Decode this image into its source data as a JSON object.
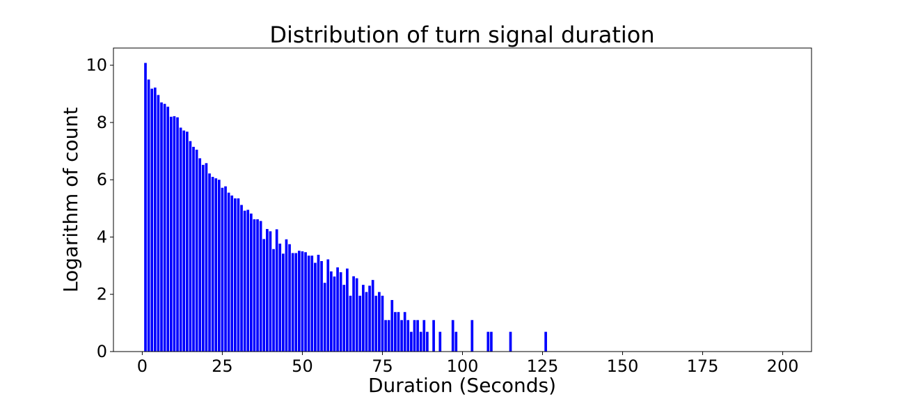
{
  "chart_data": {
    "type": "bar",
    "title": "Distribution of turn signal duration",
    "xlabel": "Duration (Seconds)",
    "ylabel": "Logarithm of count",
    "xlim": [
      -9,
      209
    ],
    "ylim": [
      0,
      10.6
    ],
    "xticks": [
      0,
      25,
      50,
      75,
      100,
      125,
      150,
      175,
      200
    ],
    "yticks": [
      0,
      2,
      4,
      6,
      8,
      10
    ],
    "grid": false,
    "bar_color": "#0000ff",
    "series": [
      {
        "x": [
          1,
          2,
          3,
          4,
          5,
          6,
          7,
          8,
          9,
          10,
          11,
          12,
          13,
          14,
          15,
          16,
          17,
          18,
          19,
          20,
          21,
          22,
          23,
          24,
          25,
          26,
          27,
          28,
          29,
          30,
          31,
          32,
          33,
          34,
          35,
          36,
          37,
          38,
          39,
          40,
          41,
          42,
          43,
          44,
          45,
          46,
          47,
          48,
          49,
          50,
          51,
          52,
          53,
          54,
          55,
          56,
          57,
          58,
          59,
          60,
          61,
          62,
          63,
          64,
          65,
          66,
          67,
          68,
          69,
          70,
          71,
          72,
          73,
          74,
          75,
          76,
          77,
          78,
          79,
          80,
          81,
          82,
          83,
          84,
          85,
          86,
          87,
          88,
          89,
          91,
          93,
          97,
          98,
          103,
          108,
          109,
          115,
          126
        ],
        "values": [
          10.08,
          9.5,
          9.18,
          9.22,
          8.96,
          8.7,
          8.65,
          8.55,
          8.2,
          8.22,
          8.18,
          7.82,
          7.72,
          7.68,
          7.35,
          7.15,
          7.05,
          6.75,
          6.52,
          6.58,
          6.22,
          6.1,
          6.05,
          6.0,
          5.72,
          5.77,
          5.55,
          5.45,
          5.35,
          5.35,
          5.12,
          4.92,
          4.95,
          4.82,
          4.62,
          4.62,
          4.56,
          3.93,
          4.28,
          4.2,
          3.58,
          4.27,
          3.77,
          3.42,
          3.92,
          3.75,
          3.44,
          3.44,
          3.52,
          3.5,
          3.47,
          3.35,
          3.35,
          3.1,
          3.38,
          3.16,
          2.4,
          3.22,
          2.8,
          2.62,
          2.94,
          2.77,
          2.33,
          2.9,
          1.95,
          2.63,
          2.56,
          1.95,
          2.33,
          2.08,
          2.3,
          2.5,
          1.95,
          2.08,
          1.95,
          1.1,
          1.1,
          1.8,
          1.38,
          1.38,
          1.1,
          1.38,
          1.1,
          0.69,
          1.1,
          1.1,
          0.69,
          1.1,
          0.69,
          1.1,
          0.69,
          1.1,
          0.69,
          1.1,
          0.69,
          0.69,
          0.69,
          0.69
        ]
      }
    ]
  }
}
